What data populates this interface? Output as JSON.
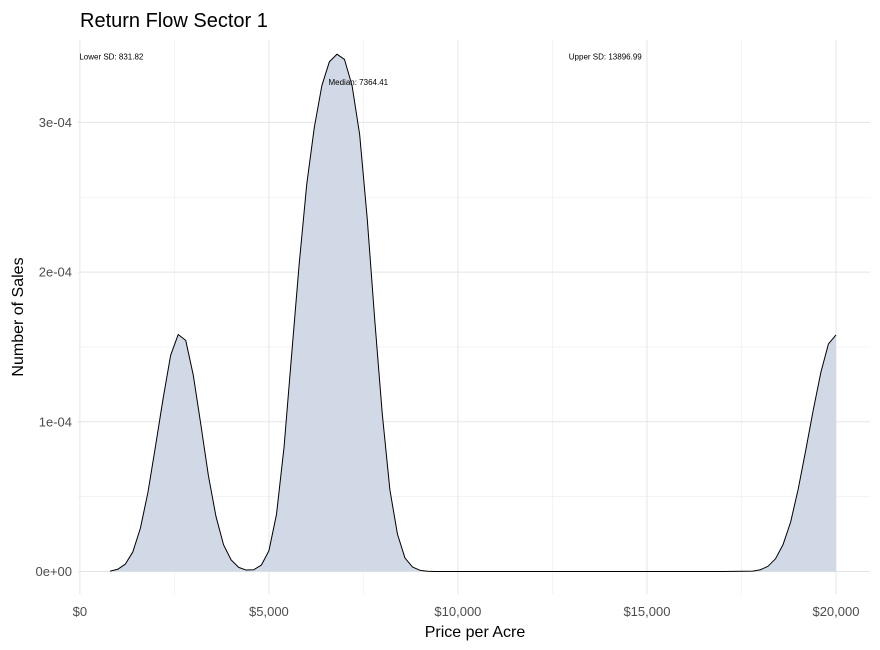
{
  "chart_data": {
    "type": "area",
    "title": "Return Flow Sector 1",
    "xlabel": "Price per Acre",
    "ylabel": "Number of Sales",
    "xlim": [
      -50,
      20900
    ],
    "ylim": [
      -1.5e-05,
      0.000355
    ],
    "x_ticks": [
      {
        "value": 0,
        "label": "$0"
      },
      {
        "value": 5000,
        "label": "$5,000"
      },
      {
        "value": 10000,
        "label": "$10,000"
      },
      {
        "value": 15000,
        "label": "$15,000"
      },
      {
        "value": 20000,
        "label": "$20,000"
      }
    ],
    "x_minor_ticks": [
      2500,
      7500,
      12500,
      17500
    ],
    "y_ticks": [
      {
        "value": 0,
        "label": "0e+00"
      },
      {
        "value": 0.0001,
        "label": "1e-04"
      },
      {
        "value": 0.0002,
        "label": "2e-04"
      },
      {
        "value": 0.0003,
        "label": "3e-04"
      }
    ],
    "y_minor_ticks": [
      5e-05,
      0.00015,
      0.00025
    ],
    "grid": true,
    "fill_color": "#d0d9e5",
    "line_color": "#000000",
    "x": [
      800,
      1000,
      1200,
      1400,
      1600,
      1800,
      2000,
      2200,
      2400,
      2600,
      2800,
      3000,
      3200,
      3400,
      3600,
      3800,
      4000,
      4200,
      4400,
      4600,
      4800,
      5000,
      5200,
      5400,
      5600,
      5800,
      6000,
      6200,
      6400,
      6600,
      6800,
      7000,
      7200,
      7400,
      7600,
      7800,
      8000,
      8200,
      8400,
      8600,
      8800,
      9000,
      9200,
      9400,
      10000,
      11000,
      12000,
      13000,
      14000,
      15000,
      16000,
      17000,
      17800,
      18000,
      18200,
      18400,
      18600,
      18800,
      19000,
      19200,
      19400,
      19600,
      19800,
      20000
    ],
    "y": [
      3e-07,
      1.5e-06,
      4.9e-06,
      1.31e-05,
      2.89e-05,
      5.29e-05,
      8.37e-05,
      0.0001154,
      0.0001444,
      0.0001583,
      0.0001544,
      0.0001311,
      9.81e-05,
      6.4e-05,
      3.68e-05,
      1.79e-05,
      7.8e-06,
      2.8e-06,
      1e-06,
      1.2e-06,
      4.3e-06,
      1.39e-05,
      3.81e-05,
      8.3e-05,
      0.0001445,
      0.0002053,
      0.0002585,
      0.0002965,
      0.0003245,
      0.0003405,
      0.0003455,
      0.000342,
      0.0003245,
      0.000292,
      0.000236,
      0.000168,
      0.000105,
      5.46e-05,
      2.5e-05,
      9e-06,
      3e-06,
      8e-07,
      2e-07,
      0.0,
      0.0,
      0.0,
      0.0,
      0.0,
      0.0,
      0.0,
      0.0,
      0.0,
      3e-07,
      1.2e-06,
      3.5e-06,
      8.5e-06,
      1.8e-05,
      3.3e-05,
      5.5e-05,
      8.1e-05,
      0.000108,
      0.000133,
      0.000152,
      0.000158
    ],
    "annotations": [
      {
        "text": "Lower SD: 831.82",
        "x": 831.82,
        "y": 0.000342,
        "anchor": "middle"
      },
      {
        "text": "Median: 7364.41",
        "x": 7364.41,
        "y": 0.000325,
        "anchor": "middle"
      },
      {
        "text": "Upper SD: 13896.99",
        "x": 13896.99,
        "y": 0.000342,
        "anchor": "middle"
      }
    ]
  }
}
